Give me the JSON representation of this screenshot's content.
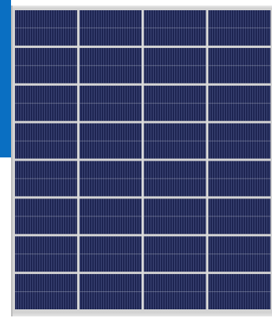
{
  "colors": {
    "accent_bar": "#0a6fc2",
    "frame": "#d4d4d4",
    "cell": "#1e2552",
    "cell_stripe": "#3b4474",
    "busbar": "#cfd2dc",
    "gap": "#dcdcdc"
  },
  "panel": {
    "rows": 8,
    "columns": 4
  }
}
